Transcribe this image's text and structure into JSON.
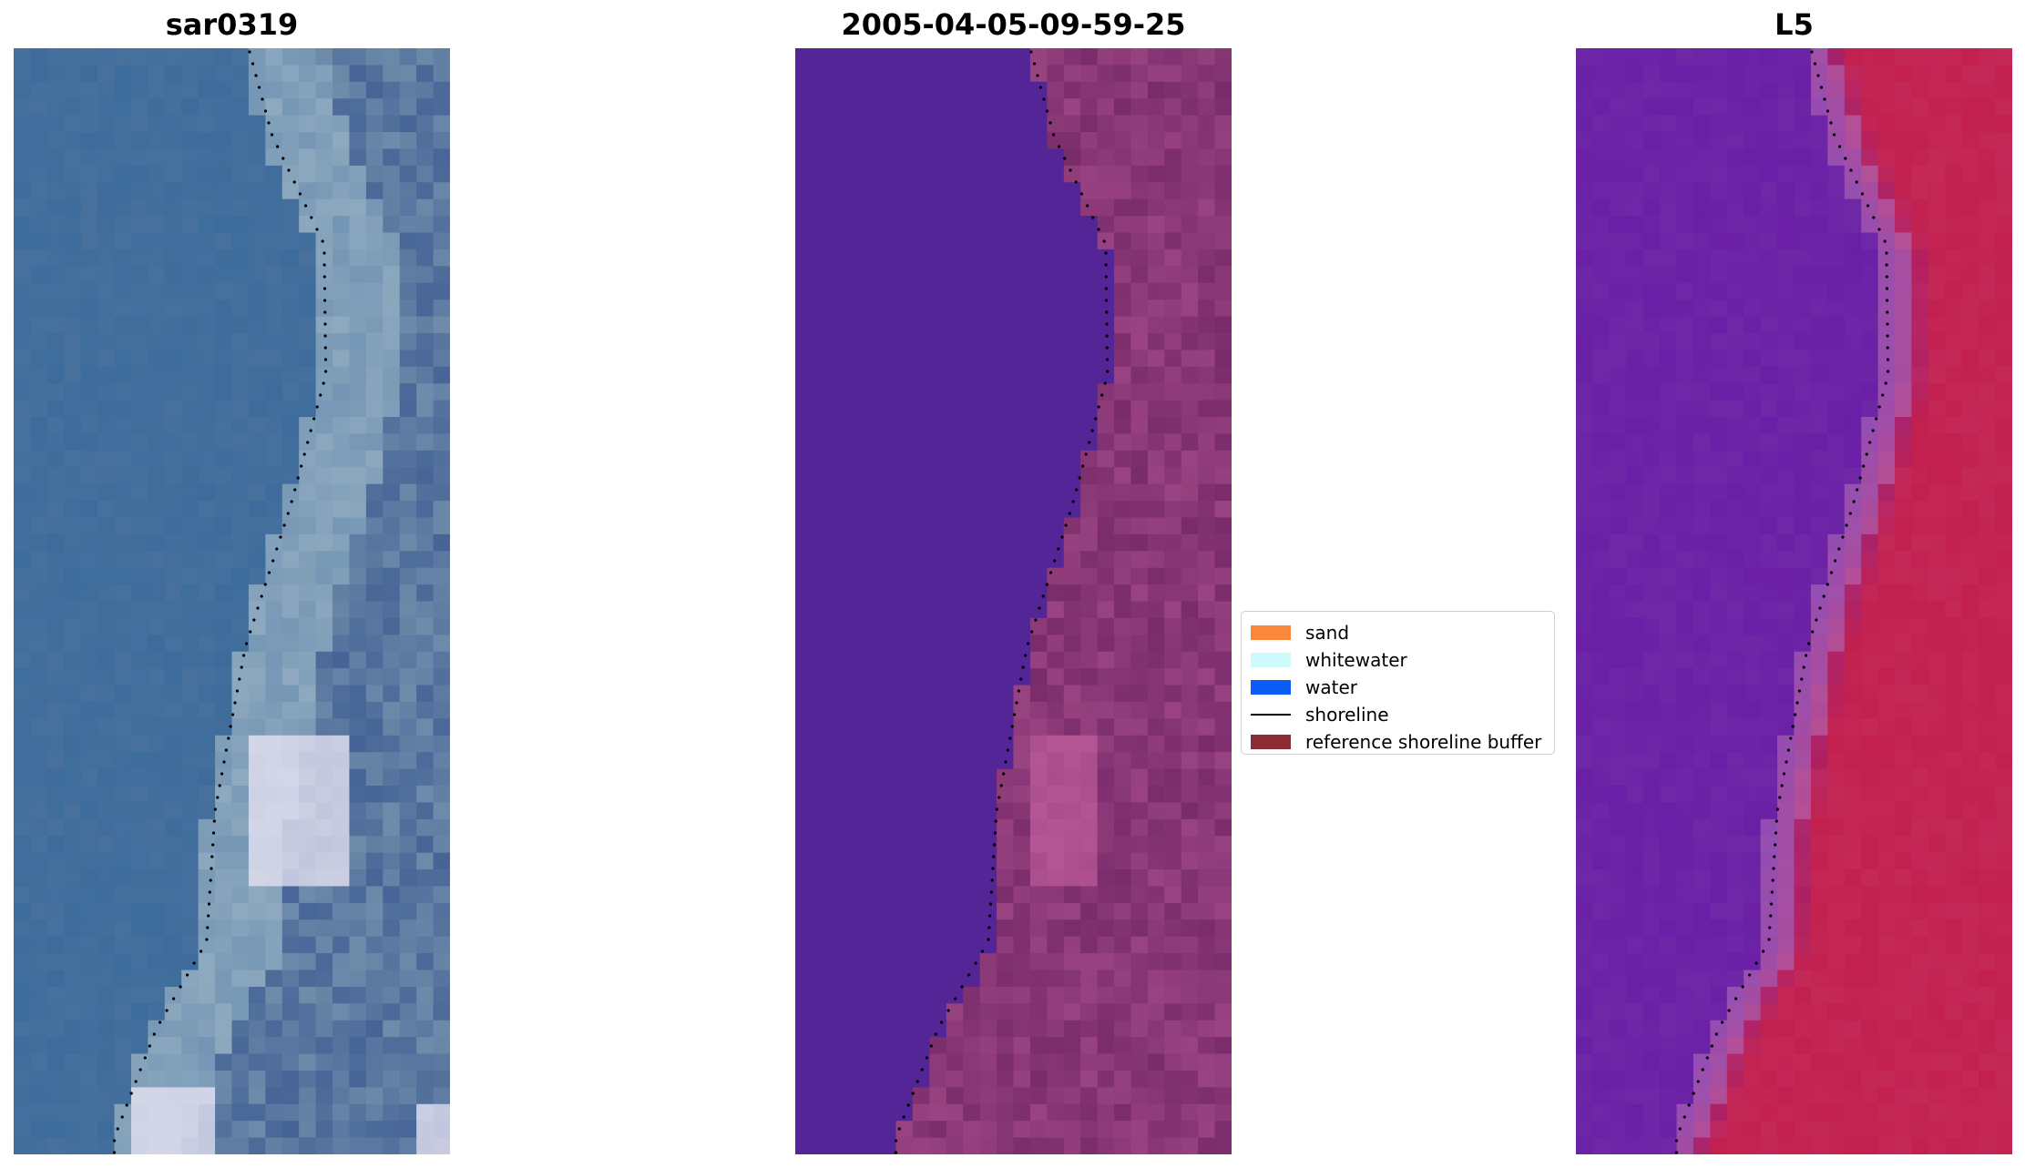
{
  "panels": [
    {
      "title": "sar0319",
      "style": "rgb"
    },
    {
      "title": "2005-04-05-09-59-25",
      "style": "classified"
    },
    {
      "title": "L5",
      "style": "index"
    }
  ],
  "legend": {
    "items": [
      {
        "label": "sand",
        "color": "#f9883a",
        "kind": "patch"
      },
      {
        "label": "whitewater",
        "color": "#cdfbfb",
        "kind": "patch"
      },
      {
        "label": "water",
        "color": "#0a5cf5",
        "kind": "patch"
      },
      {
        "label": "shoreline",
        "color": "#000000",
        "kind": "line"
      },
      {
        "label": "reference shoreline buffer",
        "color": "#8b2c35",
        "kind": "patch"
      }
    ]
  },
  "colors": {
    "classified_water": "#532596",
    "classified_land": "#7a2c6a",
    "index_low": "#6a1fa6",
    "index_high": "#c2204e",
    "rgb_water": "#3d6c9c",
    "rgb_shore": "#a0b8c8"
  }
}
